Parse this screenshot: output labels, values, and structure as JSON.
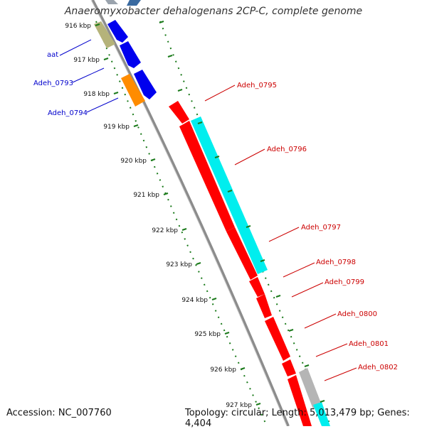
{
  "title": "Anaeromyxobacter dehalogenans 2CP-C, complete genome",
  "footer": {
    "accession_label": "Accession: NC_007760",
    "summary": "Topology: circular; Length: 5,013,479 bp; Genes: 4,404"
  },
  "ticks": [
    {
      "label": "916 kbp"
    },
    {
      "label": "917 kbp"
    },
    {
      "label": "918 kbp"
    },
    {
      "label": "919 kbp"
    },
    {
      "label": "920 kbp"
    },
    {
      "label": "921 kbp"
    },
    {
      "label": "922 kbp"
    },
    {
      "label": "923 kbp"
    },
    {
      "label": "924 kbp"
    },
    {
      "label": "925 kbp"
    },
    {
      "label": "926 kbp"
    },
    {
      "label": "927 kbp"
    }
  ],
  "genes_left": [
    {
      "label": "aat"
    },
    {
      "label": "Adeh_0793"
    },
    {
      "label": "Adeh_0794"
    }
  ],
  "genes_right": [
    {
      "label": "Adeh_0795"
    },
    {
      "label": "Adeh_0796"
    },
    {
      "label": "Adeh_0797"
    },
    {
      "label": "Adeh_0798"
    },
    {
      "label": "Adeh_0799"
    },
    {
      "label": "Adeh_0800"
    },
    {
      "label": "Adeh_0801"
    },
    {
      "label": "Adeh_0802"
    }
  ],
  "colors": {
    "backbone": "#8c8c8c",
    "cds_reverse": "#ff0000",
    "cds_forward": "#0000ee",
    "rna": "#00eeee",
    "other": "#b5b5b5",
    "trna": "#ff8c00",
    "pseudo": "#b5b37a",
    "tick": "#1a7a1a",
    "label_left": "#0000cc",
    "label_right": "#cc0000"
  }
}
